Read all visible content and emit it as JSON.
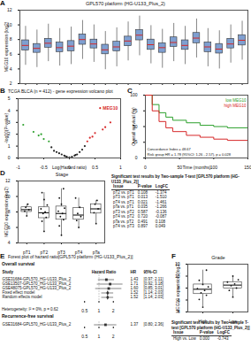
{
  "chart_data": [
    {
      "panel": "A",
      "type": "box",
      "title": "GPL570 platform (HG-U133_Plus_2)",
      "y_label": "MEG10 expression (log2)",
      "categories": [
        null,
        null,
        null,
        null,
        null,
        null,
        null,
        null,
        null,
        null,
        null,
        null,
        null,
        null,
        null,
        null,
        null,
        null,
        null,
        null
      ],
      "min": [
        4.5,
        4.2,
        5.0,
        4.4,
        4.6,
        5.3,
        4.9,
        3.9,
        4.3,
        5.1,
        5.8,
        4.7,
        4.1,
        5.0,
        4.6,
        5.5,
        4.3,
        4.0,
        4.8,
        5.2
      ],
      "q1": [
        6.5,
        6.2,
        6.9,
        6.3,
        6.4,
        7.3,
        6.8,
        6.0,
        6.4,
        7.1,
        7.9,
        6.6,
        6.2,
        7.0,
        6.6,
        7.5,
        6.3,
        6.1,
        6.8,
        7.2
      ],
      "median": [
        7.2,
        6.8,
        7.5,
        6.9,
        7.1,
        8.0,
        7.4,
        6.6,
        7.0,
        7.8,
        8.6,
        7.3,
        6.9,
        7.6,
        7.2,
        8.2,
        7.0,
        6.7,
        7.4,
        7.9
      ],
      "q3": [
        7.9,
        7.4,
        8.1,
        7.6,
        7.8,
        8.7,
        8.0,
        7.3,
        7.7,
        8.4,
        9.3,
        8.0,
        7.5,
        8.3,
        7.9,
        8.9,
        7.6,
        7.4,
        8.1,
        8.6
      ],
      "max": [
        9.8,
        9.3,
        10.1,
        9.5,
        9.7,
        10.6,
        10.0,
        9.1,
        9.6,
        10.4,
        11.2,
        9.9,
        9.4,
        10.2,
        9.8,
        10.8,
        9.5,
        9.2,
        10.0,
        10.5
      ],
      "color": "#7f9fd0",
      "median_color": "#d62728",
      "ylim": [
        2,
        12
      ],
      "yticks": [
        2,
        4,
        6,
        8,
        10,
        12
      ]
    },
    {
      "panel": "B",
      "type": "scatter",
      "title": "TCGA BLCA (n = 412) - gene expression volcano plot",
      "x_label": "Log(Hazard ratio)",
      "y_label": "-log10(P-value)",
      "x": [
        -0.9,
        -0.7,
        -0.6,
        -0.5,
        -0.4,
        -0.35,
        -0.3,
        -0.2,
        -0.15,
        -0.1,
        -0.05,
        0,
        0.05,
        0.1,
        0.15,
        0.2,
        0.25,
        0.3,
        0.35,
        0.4,
        0.5,
        0.6,
        0.7,
        0.8,
        -0.25,
        0.12,
        -0.08,
        0.45,
        -0.55,
        0.65
      ],
      "values": [
        2.8,
        2.2,
        1.9,
        1.6,
        1.4,
        0.9,
        0.6,
        0.4,
        0.3,
        0.2,
        0.1,
        0.05,
        0.1,
        0.2,
        0.3,
        0.5,
        0.7,
        1.0,
        1.4,
        1.7,
        2.1,
        4.2,
        2.6,
        3.0,
        0.5,
        0.25,
        0.15,
        1.8,
        2.0,
        2.4
      ],
      "colors": [
        "#2ca02c",
        "#2ca02c",
        "#2ca02c",
        "#2ca02c",
        "#2ca02c",
        "#222222",
        "#222222",
        "#222222",
        "#222222",
        "#222222",
        "#222222",
        "#222222",
        "#222222",
        "#222222",
        "#222222",
        "#222222",
        "#222222",
        "#222222",
        "#d62728",
        "#d62728",
        "#d62728",
        "#d62728",
        "#d62728",
        "#d62728",
        "#222222",
        "#222222",
        "#222222",
        "#d62728",
        "#2ca02c",
        "#d62728"
      ],
      "annotations": [
        {
          "text": "MEG10",
          "x": 0.6,
          "y": 4.2,
          "color": "#d62728"
        }
      ],
      "xlim": [
        -1,
        1
      ],
      "xticks": [
        -1,
        -0.5,
        0,
        0.5,
        1
      ],
      "ylim": [
        0,
        5
      ],
      "yticks": [
        0,
        1,
        2,
        3,
        4,
        5
      ]
    },
    {
      "panel": "C",
      "type": "line",
      "x_label": "Time (months)",
      "y_label": "Overall survival (%)",
      "x": [
        0,
        10,
        20,
        30,
        40,
        60,
        80,
        100,
        120,
        150
      ],
      "series": [
        {
          "name": "low MEG10",
          "color": "#2ca02c",
          "values": [
            100,
            85,
            72,
            65,
            60,
            56,
            52,
            50,
            48,
            48
          ]
        },
        {
          "name": "high MEG10",
          "color": "#d62728",
          "values": [
            100,
            75,
            58,
            48,
            42,
            36,
            33,
            30,
            28,
            28
          ]
        }
      ],
      "line_style": "step",
      "legend": "top-right",
      "annotations": [
        "Concordance Index = 48.67",
        "Risk group HR = 1.78 (95%CI: 1.26 - 2.57), p = 0.028"
      ],
      "xlim": [
        0,
        150
      ],
      "xticks": [
        0,
        50,
        100,
        150
      ],
      "ylim": [
        0,
        100
      ],
      "yticks": [
        0,
        25,
        50,
        75,
        100
      ]
    },
    {
      "panel": "D",
      "type": "box",
      "title": "Stage",
      "y_label": "MEG10 expression (log2)",
      "categories": [
        "pT1",
        "pT2",
        "pT3",
        "pT4",
        "pTa"
      ],
      "min": [
        7.5,
        5.5,
        5.0,
        6.0,
        6.5
      ],
      "q1": [
        8.0,
        7.2,
        7.0,
        7.0,
        7.8
      ],
      "median": [
        8.3,
        7.9,
        7.8,
        7.6,
        8.4
      ],
      "q3": [
        8.6,
        8.6,
        8.7,
        8.5,
        9.0
      ],
      "max": [
        9.0,
        10.5,
        11.0,
        9.8,
        9.5
      ],
      "points": [
        [
          7.5,
          8.1,
          8.3,
          8.6,
          9.0
        ],
        [
          5.5,
          6.8,
          7.3,
          7.8,
          8.0,
          8.4,
          8.9,
          9.6,
          10.5
        ],
        [
          5.0,
          6.2,
          7.0,
          7.4,
          7.8,
          8.1,
          8.5,
          9.0,
          9.8,
          11.0
        ],
        [
          6.0,
          6.9,
          7.4,
          7.8,
          8.6,
          9.8
        ],
        [
          6.5,
          7.9,
          8.4,
          9.0,
          9.5
        ]
      ],
      "color": "#ffffff",
      "median_color": "#000000",
      "ylim": [
        4,
        12
      ],
      "yticks": [
        4,
        6,
        8,
        10,
        12
      ],
      "table": {
        "title": "Significant test results by Two-sample T-test [GPL570 platform (HG-U133_Plus_2)]",
        "columns": [
          "Issue",
          "P-value",
          "LogFC"
        ],
        "rows": [
          [
            "pT2 vs. pT1",
            "0.108",
            "-1.374"
          ],
          [
            "pT3 vs. pT1",
            "0.013",
            "-1.510"
          ],
          [
            "pT4 vs. pT1",
            "0.021",
            "-1.461"
          ],
          [
            "pTa vs. pT1",
            "0.035",
            "-1.266"
          ],
          [
            "pT3 vs. pT2",
            "0.587",
            "-0.136"
          ],
          [
            "pT4 vs. pT2",
            "0.720",
            "-0.087"
          ],
          [
            "pTa vs. pT2",
            "0.491",
            "0.108"
          ],
          [
            "pT4 vs. pT3",
            "0.897",
            "0.049"
          ]
        ]
      }
    },
    {
      "panel": "E",
      "type": "forest",
      "title": "Forest plot of hazard ratio[GPL570 platform (HG-U133_Plus_2)]",
      "x_label": "Hazard Ratio",
      "columns": [
        "Study",
        "HR",
        "95%-CI"
      ],
      "log": "x",
      "xlim": [
        0.4,
        4
      ],
      "xticks": [
        0.5,
        1,
        2
      ],
      "reference": 1,
      "sections": [
        {
          "title": "Overall survival",
          "note": "Heterogeneity: I² = 0%, p = 0.62",
          "rows": [
            {
              "study": "GSE31684-GPL570_HG-U133_Plus_2",
              "hr": 1.43,
              "ci": [
                0.97,
                2.11
              ],
              "hr_label": "1.43",
              "ci_label": "[0.97; 2.11]",
              "marker": "square"
            },
            {
              "study": "GSE13507-GPL570_HG-U133_Plus_2",
              "hr": 1.71,
              "ci": [
                0.92,
                3.18
              ],
              "hr_label": "1.71",
              "ci_label": "[0.92; 3.18]",
              "marker": "square"
            },
            {
              "study": "GSE48075-GPL570_HG-U133_Plus_2",
              "hr": 1.6,
              "ci": [
                0.85,
                3.01
              ],
              "hr_label": "1.60",
              "ci_label": "[0.85; 3.01]",
              "marker": "square"
            },
            {
              "study": "Fixed effect model",
              "hr": 1.52,
              "ci": [
                1.14,
                2.03
              ],
              "hr_label": "1.52",
              "ci_label": "[1.14; 2.03]",
              "marker": "diamond"
            },
            {
              "study": "Random effects model",
              "hr": 1.52,
              "ci": [
                1.14,
                2.03
              ],
              "hr_label": "1.52",
              "ci_label": "[1.14; 2.03]",
              "marker": "diamond"
            }
          ]
        },
        {
          "title": "Recurrence-free survival",
          "rows": [
            {
              "study": "GSE31684-GPL570_HG-U133_Plus_2",
              "hr": 1.37,
              "ci": [
                0.8,
                2.36
              ],
              "hr_label": "1.37",
              "ci_label": "[0.80; 2.36]",
              "marker": "square"
            }
          ]
        }
      ]
    },
    {
      "panel": "F",
      "type": "box",
      "title": "Grade",
      "y_label": "MEG10 expression (log2)",
      "categories": [
        "High",
        "Low"
      ],
      "min": [
        4.8,
        6.5
      ],
      "q1": [
        7.0,
        7.9
      ],
      "median": [
        7.8,
        8.5
      ],
      "q3": [
        8.6,
        9.0
      ],
      "max": [
        11.0,
        10.0
      ],
      "points": [
        [
          4.8,
          6.1,
          6.8,
          7.2,
          7.6,
          7.9,
          8.2,
          8.6,
          9.3,
          11.0
        ],
        [
          6.5,
          7.6,
          8.0,
          8.4,
          8.7,
          9.0,
          9.4,
          10.0
        ]
      ],
      "color": "#ffffff",
      "median_color": "#000000",
      "ylim": [
        4,
        12
      ],
      "yticks": [
        4,
        6,
        8,
        10,
        12
      ],
      "table": {
        "title": "Significant test results by Two-sample T-test [GPL570 platform (HG-U133_Plus_2)]",
        "columns": [
          "Issue",
          "P-value",
          "LogFC"
        ],
        "rows": [
          [
            "High vs. Low",
            "0.000",
            "-0.743"
          ]
        ]
      }
    }
  ]
}
